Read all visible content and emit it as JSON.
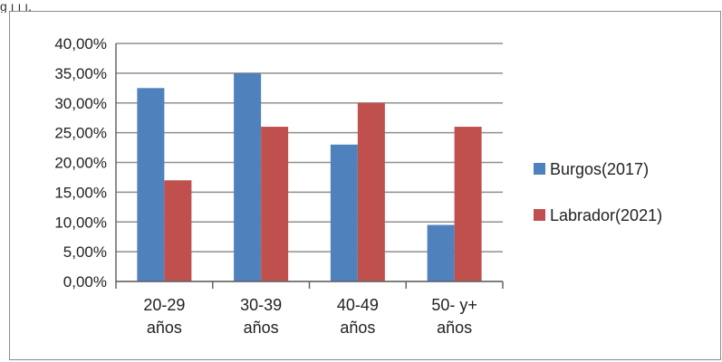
{
  "page": {
    "top_text": "g ı ı ı."
  },
  "chart_data": {
    "type": "bar",
    "categories": [
      [
        "20-29",
        "años"
      ],
      [
        "30-39",
        "años"
      ],
      [
        "40-49",
        "años"
      ],
      [
        "50- y+",
        "años"
      ]
    ],
    "series": [
      {
        "name": "Burgos(2017)",
        "color": "#4f81bd",
        "values": [
          32.5,
          35.0,
          23.0,
          9.5
        ]
      },
      {
        "name": "Labrador(2021)",
        "color": "#c0504d",
        "values": [
          17.0,
          26.0,
          30.0,
          26.0
        ]
      }
    ],
    "y_ticks": [
      "0,00%",
      "5,00%",
      "10,00%",
      "15,00%",
      "20,00%",
      "25,00%",
      "30,00%",
      "35,00%",
      "40,00%"
    ],
    "ylim": [
      0,
      40
    ],
    "grid": true,
    "legend_position": "right"
  }
}
